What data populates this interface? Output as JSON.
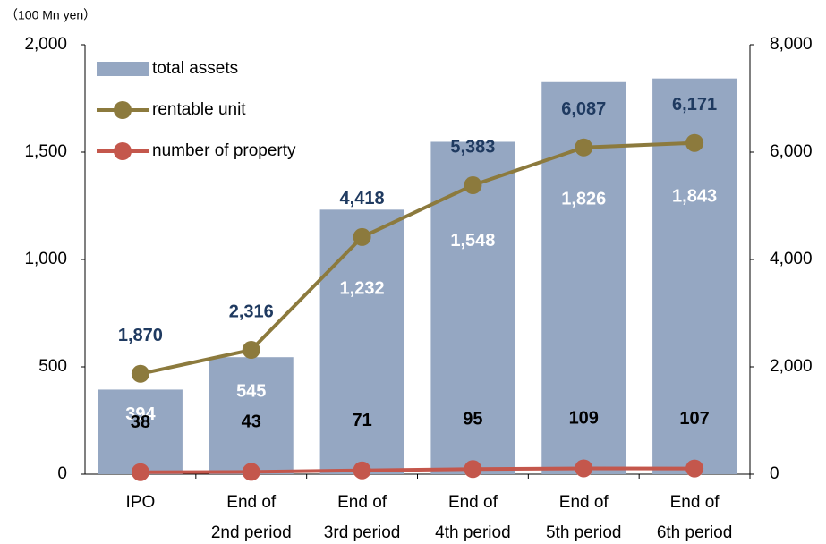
{
  "chart_data": {
    "type": "combo",
    "unit_label": "（100 Mn yen）",
    "categories": [
      [
        "IPO"
      ],
      [
        "End of",
        "2nd period"
      ],
      [
        "End of",
        "3rd period"
      ],
      [
        "End of",
        "4th period"
      ],
      [
        "End of",
        "5th period"
      ],
      [
        "End of",
        "6th period"
      ]
    ],
    "series": [
      {
        "name": "total assets",
        "type": "bar",
        "color": "#95a7c2",
        "values": [
          394,
          545,
          1232,
          1548,
          1826,
          1843
        ],
        "value_labels": [
          "394",
          "545",
          "1,232",
          "1,548",
          "1,826",
          "1,843"
        ],
        "label_color": "#ffffff"
      },
      {
        "name": "rentable unit",
        "type": "line",
        "axis": "y2",
        "color": "#8c7a3d",
        "values": [
          1870,
          2316,
          4418,
          5383,
          6087,
          6171
        ],
        "value_labels": [
          "1,870",
          "2,316",
          "4,418",
          "5,383",
          "6,087",
          "6,171"
        ],
        "label_color": "#1f3a60"
      },
      {
        "name": "number of property",
        "type": "line",
        "axis": "y2",
        "color": "#c4574c",
        "values": [
          38,
          43,
          71,
          95,
          109,
          107
        ],
        "label_color": "#000000"
      }
    ],
    "ylim": [
      0,
      2000
    ],
    "yticks": [
      0,
      500,
      {
        "value": 1000,
        "label": "1,000"
      },
      {
        "value": 1500,
        "label": "1,500"
      },
      {
        "value": 2000,
        "label": "2,000"
      }
    ],
    "y2lim": [
      0,
      8000
    ],
    "y2ticks": [
      0,
      {
        "value": 2000,
        "label": "2,000"
      },
      {
        "value": 4000,
        "label": "4,000"
      },
      {
        "value": 6000,
        "label": "6,000"
      },
      {
        "value": 8000,
        "label": "8,000"
      }
    ],
    "legend": "top-left",
    "grid": false
  }
}
